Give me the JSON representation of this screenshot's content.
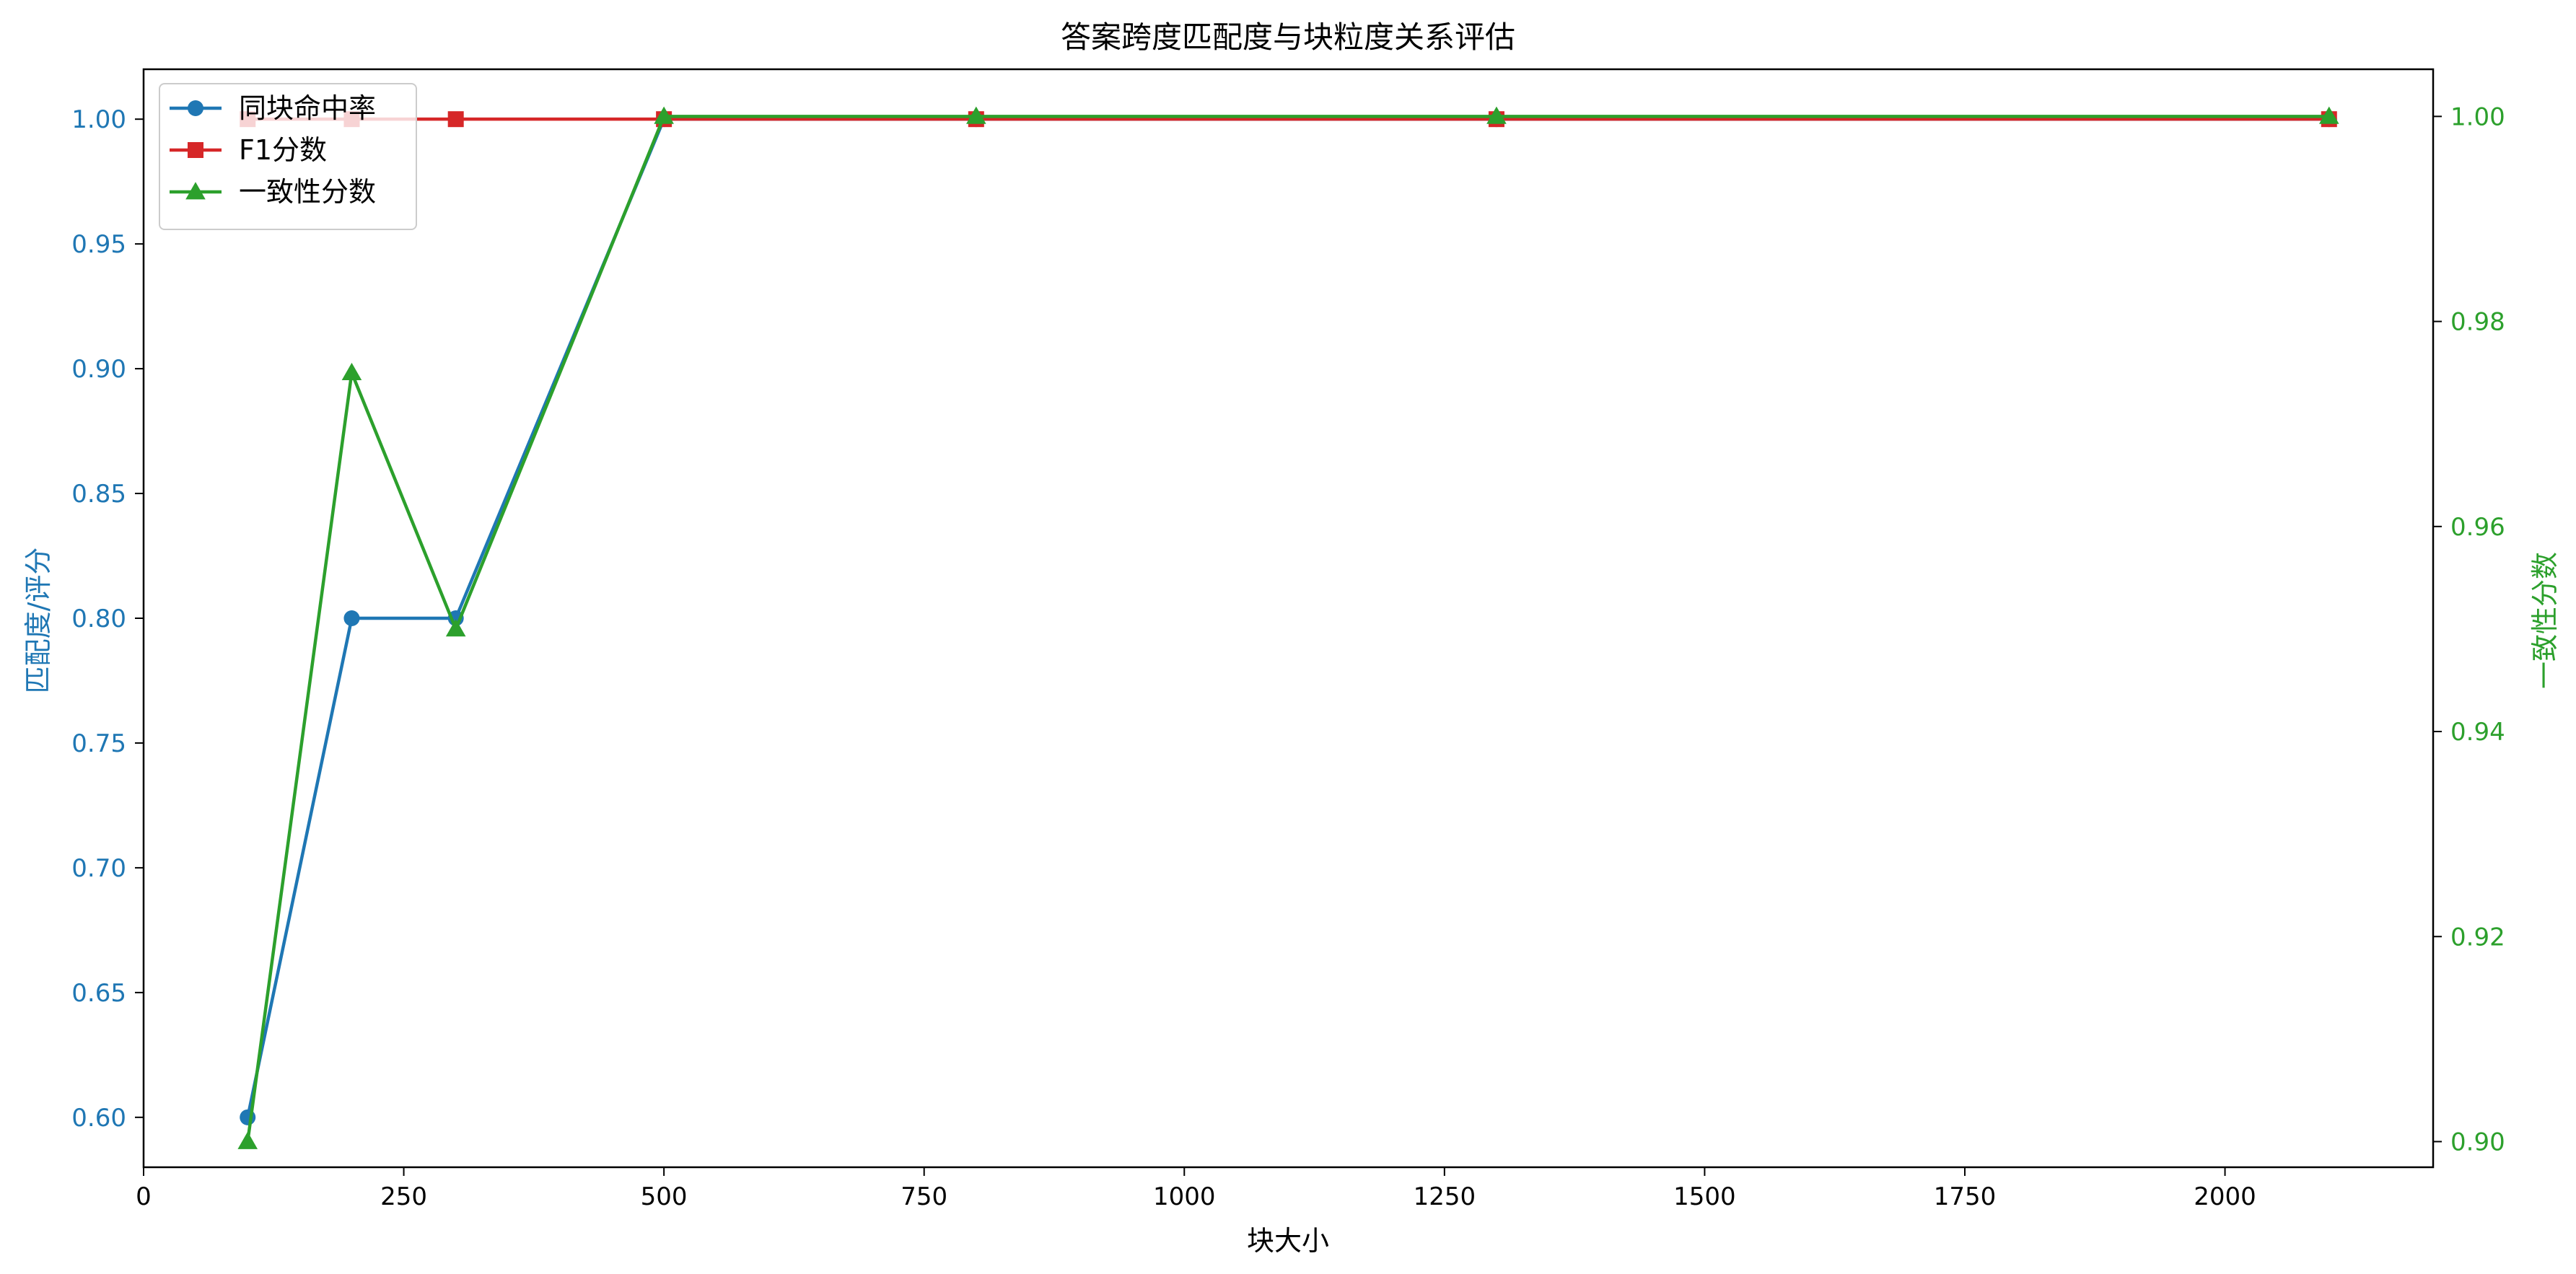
{
  "chart_data": {
    "type": "line",
    "title": "答案跨度匹配度与块粒度关系评估",
    "xlabel": "块大小",
    "ylabel": "匹配度/评分",
    "y2label": "一致性分数",
    "xlim": [
      0,
      2200
    ],
    "ylim": [
      0.58,
      1.02
    ],
    "y2lim": [
      0.8975,
      1.0046
    ],
    "xticks": [
      0,
      250,
      500,
      750,
      1000,
      1250,
      1500,
      1750,
      2000
    ],
    "yticks": [
      0.6,
      0.65,
      0.7,
      0.75,
      0.8,
      0.85,
      0.9,
      0.95,
      1.0
    ],
    "y2ticks": [
      0.9,
      0.92,
      0.94,
      0.96,
      0.98,
      1.0
    ],
    "x": [
      100,
      200,
      300,
      500,
      800,
      1300,
      2100
    ],
    "grid": false,
    "legend_position": "top-left",
    "series": [
      {
        "name": "同块命中率",
        "axis": "left",
        "marker": "circle",
        "color": "#1f77b4",
        "values": [
          0.6,
          0.8,
          0.8,
          1.0,
          1.0,
          1.0,
          1.0
        ]
      },
      {
        "name": "F1分数",
        "axis": "left",
        "marker": "square",
        "color": "#d62728",
        "values": [
          1.0,
          1.0,
          1.0,
          1.0,
          1.0,
          1.0,
          1.0
        ]
      },
      {
        "name": "一致性分数",
        "axis": "right",
        "marker": "triangle",
        "color": "#2ca02c",
        "values": [
          0.9,
          0.975,
          0.95,
          1.0,
          1.0,
          1.0,
          1.0
        ]
      }
    ],
    "colors": {
      "left_axis": "#1f77b4",
      "right_axis": "#2ca02c",
      "text": "#000000"
    }
  }
}
